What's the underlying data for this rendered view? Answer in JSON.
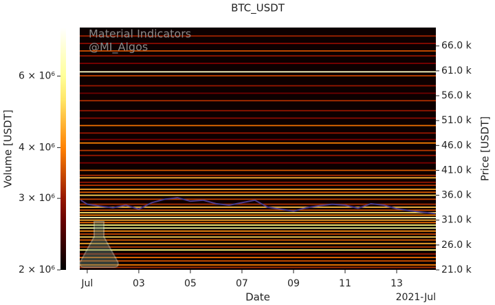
{
  "chart_data": {
    "type": "heatmap",
    "title": "BTC_USDT",
    "watermark": [
      "Material Indicators",
      "@MI_Algos"
    ],
    "xlabel": "Date",
    "x_offset_label": "2021-Jul",
    "xlim": [
      0.71,
      14.52
    ],
    "xticks": [
      {
        "value": 1,
        "label": "Jul"
      },
      {
        "value": 3,
        "label": "03"
      },
      {
        "value": 5,
        "label": "05"
      },
      {
        "value": 7,
        "label": "07"
      },
      {
        "value": 9,
        "label": "09"
      },
      {
        "value": 11,
        "label": "11"
      },
      {
        "value": 13,
        "label": "13"
      }
    ],
    "ylabel": "Price [USDT]",
    "ylim": [
      21000,
      69700
    ],
    "yticks": [
      {
        "value": 21000,
        "label": "21.0 k"
      },
      {
        "value": 26000,
        "label": "26.0 k"
      },
      {
        "value": 31000,
        "label": "31.0 k"
      },
      {
        "value": 36000,
        "label": "36.0 k"
      },
      {
        "value": 41000,
        "label": "41.0 k"
      },
      {
        "value": 46000,
        "label": "46.0 k"
      },
      {
        "value": 51000,
        "label": "51.0 k"
      },
      {
        "value": 56000,
        "label": "56.0 k"
      },
      {
        "value": 61000,
        "label": "61.0 k"
      },
      {
        "value": 66000,
        "label": "66.0 k"
      }
    ],
    "colorbar": {
      "label": "Volume [USDT]",
      "log": true,
      "lim": [
        2000000,
        7900000
      ],
      "ticks": [
        {
          "value": 2000000,
          "label": "2 × 10⁶"
        },
        {
          "value": 3000000,
          "label": "3 × 10⁶"
        },
        {
          "value": 4000000,
          "label": "4 × 10⁶"
        },
        {
          "value": 6000000,
          "label": "6 × 10⁶"
        }
      ]
    },
    "levels": {
      "price": [
        21500,
        22000,
        22800,
        23500,
        24200,
        25000,
        25600,
        26300,
        27000,
        27600,
        28200,
        28800,
        29400,
        30000,
        30500,
        31000,
        31500,
        32000,
        32500,
        33000,
        33600,
        34200,
        35200,
        36000,
        36600,
        37200,
        38000,
        38600,
        39500,
        40000,
        41000,
        42500,
        44000,
        45000,
        46500,
        47200,
        48500,
        50000,
        51500,
        53000,
        55000,
        56500,
        58000,
        60000,
        60800,
        62500,
        64000,
        65000,
        66500,
        68000
      ],
      "volume": [
        3200000,
        4000000,
        3500000,
        3800000,
        3000000,
        5500000,
        3300000,
        4500000,
        3600000,
        5000000,
        3400000,
        4200000,
        6000000,
        5500000,
        3800000,
        4500000,
        6500000,
        4000000,
        5200000,
        3500000,
        4800000,
        3200000,
        3400000,
        5000000,
        3600000,
        4400000,
        3300000,
        3000000,
        4600000,
        3200000,
        3600000,
        2800000,
        3000000,
        3300000,
        4000000,
        2800000,
        3000000,
        3800000,
        2900000,
        3000000,
        3200000,
        2700000,
        3000000,
        3400000,
        6800000,
        2800000,
        3000000,
        3500000,
        2900000,
        3100000
      ]
    },
    "price_line": {
      "color": "#4a3c8c",
      "x": [
        0.75,
        1,
        1.5,
        2,
        2.5,
        3,
        3.5,
        4,
        4.5,
        5,
        5.5,
        6,
        6.5,
        7,
        7.5,
        8,
        8.5,
        9,
        9.5,
        10,
        10.5,
        11,
        11.5,
        12,
        12.5,
        13,
        13.5,
        14,
        14.5
      ],
      "values": [
        35000,
        34200,
        33800,
        33500,
        34000,
        33200,
        34500,
        35200,
        35500,
        34800,
        35000,
        34300,
        34000,
        34500,
        35000,
        33600,
        33200,
        32800,
        33500,
        33900,
        34200,
        34000,
        33400,
        34300,
        34000,
        33300,
        32900,
        32600,
        32300
      ]
    }
  }
}
